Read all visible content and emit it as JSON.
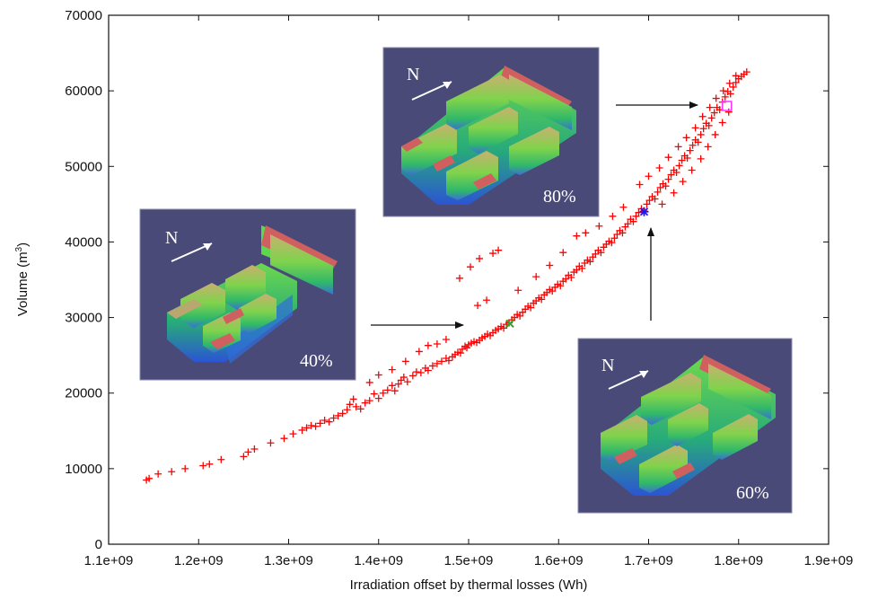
{
  "chart_data": {
    "type": "scatter",
    "title": "",
    "xlabel": "Irradiation offset by thermal losses (Wh)",
    "ylabel_main": "Volume (m",
    "ylabel_sup": "3",
    "ylabel_close": ")",
    "xlim": [
      1100000000.0,
      1900000000.0
    ],
    "ylim": [
      0,
      70000
    ],
    "x_tick_values": [
      1100000000.0,
      1200000000.0,
      1300000000.0,
      1400000000.0,
      1500000000.0,
      1600000000.0,
      1700000000.0,
      1800000000.0,
      1900000000.0
    ],
    "x_tick_labels": [
      "1.1e+09",
      "1.2e+09",
      "1.3e+09",
      "1.4e+09",
      "1.5e+09",
      "1.6e+09",
      "1.7e+09",
      "1.8e+09",
      "1.9e+09"
    ],
    "y_tick_values": [
      0,
      10000,
      20000,
      30000,
      40000,
      50000,
      60000,
      70000
    ],
    "y_tick_labels": [
      "0",
      "10000",
      "20000",
      "30000",
      "40000",
      "50000",
      "60000",
      "70000"
    ],
    "grid": false,
    "colors": {
      "points": "#ff0000",
      "highlight_40": "#22aa22",
      "highlight_60": "#1a1aff",
      "highlight_80": "#ff33ff",
      "inset_bg": "#4a4a78"
    },
    "series": [
      {
        "marker": "+",
        "points": [
          [
            1142000000.0,
            8500
          ],
          [
            1145000000.0,
            8700
          ],
          [
            1155000000.0,
            9300
          ],
          [
            1170000000.0,
            9600
          ],
          [
            1185000000.0,
            10000
          ],
          [
            1205000000.0,
            10400
          ],
          [
            1212000000.0,
            10600
          ],
          [
            1225000000.0,
            11200
          ],
          [
            1250000000.0,
            11600
          ],
          [
            1255000000.0,
            12200
          ],
          [
            1262000000.0,
            12600
          ],
          [
            1280000000.0,
            13400
          ],
          [
            1295000000.0,
            14000
          ],
          [
            1305000000.0,
            14600
          ],
          [
            1315000000.0,
            15100
          ],
          [
            1320000000.0,
            15400
          ],
          [
            1325000000.0,
            15700
          ],
          [
            1330000000.0,
            15600
          ],
          [
            1335000000.0,
            16000
          ],
          [
            1340000000.0,
            16400
          ],
          [
            1345000000.0,
            16200
          ],
          [
            1350000000.0,
            16700
          ],
          [
            1355000000.0,
            17000
          ],
          [
            1360000000.0,
            17300
          ],
          [
            1365000000.0,
            17800
          ],
          [
            1368000000.0,
            18500
          ],
          [
            1372000000.0,
            19200
          ],
          [
            1375000000.0,
            18200
          ],
          [
            1380000000.0,
            17900
          ],
          [
            1385000000.0,
            18700
          ],
          [
            1390000000.0,
            19000
          ],
          [
            1395000000.0,
            19900
          ],
          [
            1400000000.0,
            19300
          ],
          [
            1405000000.0,
            20000
          ],
          [
            1410000000.0,
            20400
          ],
          [
            1415000000.0,
            21000
          ],
          [
            1418000000.0,
            20300
          ],
          [
            1422000000.0,
            21200
          ],
          [
            1425000000.0,
            21700
          ],
          [
            1428000000.0,
            22100
          ],
          [
            1432000000.0,
            21500
          ],
          [
            1438000000.0,
            22300
          ],
          [
            1442000000.0,
            22800
          ],
          [
            1447000000.0,
            22700
          ],
          [
            1452000000.0,
            23300
          ],
          [
            1455000000.0,
            23000
          ],
          [
            1460000000.0,
            23600
          ],
          [
            1465000000.0,
            23900
          ],
          [
            1470000000.0,
            24200
          ],
          [
            1475000000.0,
            24600
          ],
          [
            1478000000.0,
            24300
          ],
          [
            1482000000.0,
            24800
          ],
          [
            1485000000.0,
            25100
          ],
          [
            1488000000.0,
            25400
          ],
          [
            1491000000.0,
            25300
          ],
          [
            1493000000.0,
            25800
          ],
          [
            1496000000.0,
            26200
          ],
          [
            1498000000.0,
            26000
          ],
          [
            1500000000.0,
            26400
          ],
          [
            1503000000.0,
            26600
          ],
          [
            1506000000.0,
            26800
          ],
          [
            1509000000.0,
            26700
          ],
          [
            1512000000.0,
            27000
          ],
          [
            1515000000.0,
            27300
          ],
          [
            1518000000.0,
            27500
          ],
          [
            1521000000.0,
            27800
          ],
          [
            1524000000.0,
            27600
          ],
          [
            1527000000.0,
            28000
          ],
          [
            1530000000.0,
            28300
          ],
          [
            1533000000.0,
            28500
          ],
          [
            1536000000.0,
            28800
          ],
          [
            1539000000.0,
            28600
          ],
          [
            1542000000.0,
            29100
          ],
          [
            1545000000.0,
            29300
          ],
          [
            1548000000.0,
            29700
          ],
          [
            1551000000.0,
            30000
          ],
          [
            1554000000.0,
            30400
          ],
          [
            1557000000.0,
            30200
          ],
          [
            1560000000.0,
            30700
          ],
          [
            1563000000.0,
            31100
          ],
          [
            1566000000.0,
            31500
          ],
          [
            1569000000.0,
            31300
          ],
          [
            1572000000.0,
            31900
          ],
          [
            1575000000.0,
            32200
          ],
          [
            1578000000.0,
            32600
          ],
          [
            1581000000.0,
            32400
          ],
          [
            1584000000.0,
            33000
          ],
          [
            1587000000.0,
            33300
          ],
          [
            1590000000.0,
            33700
          ],
          [
            1593000000.0,
            33500
          ],
          [
            1596000000.0,
            34000
          ],
          [
            1599000000.0,
            34400
          ],
          [
            1602000000.0,
            34200
          ],
          [
            1605000000.0,
            34800
          ],
          [
            1608000000.0,
            35100
          ],
          [
            1611000000.0,
            35600
          ],
          [
            1614000000.0,
            35300
          ],
          [
            1617000000.0,
            36000
          ],
          [
            1620000000.0,
            36300
          ],
          [
            1623000000.0,
            36800
          ],
          [
            1626000000.0,
            36500
          ],
          [
            1629000000.0,
            37200
          ],
          [
            1632000000.0,
            37600
          ],
          [
            1635000000.0,
            37400
          ],
          [
            1638000000.0,
            38000
          ],
          [
            1641000000.0,
            38400
          ],
          [
            1644000000.0,
            38900
          ],
          [
            1647000000.0,
            38600
          ],
          [
            1650000000.0,
            39300
          ],
          [
            1653000000.0,
            39700
          ],
          [
            1656000000.0,
            40100
          ],
          [
            1659000000.0,
            39900
          ],
          [
            1662000000.0,
            40500
          ],
          [
            1665000000.0,
            41000
          ],
          [
            1668000000.0,
            41500
          ],
          [
            1671000000.0,
            41200
          ],
          [
            1674000000.0,
            42000
          ],
          [
            1677000000.0,
            42400
          ],
          [
            1680000000.0,
            43000
          ],
          [
            1683000000.0,
            42700
          ],
          [
            1686000000.0,
            43400
          ],
          [
            1689000000.0,
            43900
          ],
          [
            1692000000.0,
            44400
          ],
          [
            1695000000.0,
            44100
          ],
          [
            1698000000.0,
            45000
          ],
          [
            1701000000.0,
            45500
          ],
          [
            1704000000.0,
            46000
          ],
          [
            1707000000.0,
            45700
          ],
          [
            1710000000.0,
            46600
          ],
          [
            1713000000.0,
            47200
          ],
          [
            1716000000.0,
            47700
          ],
          [
            1719000000.0,
            47400
          ],
          [
            1722000000.0,
            48300
          ],
          [
            1725000000.0,
            48900
          ],
          [
            1728000000.0,
            49500
          ],
          [
            1731000000.0,
            49200
          ],
          [
            1734000000.0,
            50100
          ],
          [
            1737000000.0,
            50800
          ],
          [
            1740000000.0,
            51400
          ],
          [
            1743000000.0,
            51100
          ],
          [
            1746000000.0,
            52100
          ],
          [
            1749000000.0,
            52800
          ],
          [
            1752000000.0,
            53500
          ],
          [
            1755000000.0,
            53200
          ],
          [
            1758000000.0,
            54200
          ],
          [
            1761000000.0,
            55000
          ],
          [
            1764000000.0,
            55700
          ],
          [
            1767000000.0,
            55400
          ],
          [
            1770000000.0,
            56400
          ],
          [
            1773000000.0,
            57100
          ],
          [
            1776000000.0,
            57800
          ],
          [
            1779000000.0,
            57500
          ],
          [
            1782000000.0,
            58500
          ],
          [
            1785000000.0,
            59200
          ],
          [
            1788000000.0,
            59900
          ],
          [
            1791000000.0,
            59600
          ],
          [
            1794000000.0,
            60500
          ],
          [
            1797000000.0,
            61100
          ],
          [
            1800000000.0,
            61600
          ],
          [
            1803000000.0,
            61900
          ],
          [
            1806000000.0,
            62200
          ],
          [
            1809000000.0,
            62500
          ],
          [
            1690000000.0,
            47600
          ],
          [
            1700000000.0,
            48700
          ],
          [
            1712000000.0,
            49800
          ],
          [
            1722000000.0,
            51200
          ],
          [
            1733000000.0,
            52600
          ],
          [
            1742000000.0,
            53800
          ],
          [
            1752000000.0,
            55100
          ],
          [
            1760000000.0,
            56600
          ],
          [
            1768000000.0,
            57800
          ],
          [
            1775000000.0,
            59000
          ],
          [
            1783000000.0,
            60000
          ],
          [
            1790000000.0,
            61000
          ],
          [
            1797000000.0,
            62000
          ],
          [
            1715000000.0,
            45000
          ],
          [
            1728000000.0,
            46500
          ],
          [
            1738000000.0,
            48000
          ],
          [
            1748000000.0,
            49500
          ],
          [
            1758000000.0,
            51000
          ],
          [
            1766000000.0,
            52600
          ],
          [
            1774000000.0,
            54200
          ],
          [
            1782000000.0,
            55800
          ],
          [
            1789000000.0,
            57200
          ],
          [
            1620000000.0,
            40800
          ],
          [
            1630000000.0,
            41200
          ],
          [
            1645000000.0,
            42100
          ],
          [
            1660000000.0,
            43400
          ],
          [
            1672000000.0,
            44600
          ],
          [
            1490000000.0,
            35200
          ],
          [
            1502000000.0,
            36700
          ],
          [
            1512000000.0,
            37800
          ],
          [
            1527000000.0,
            38500
          ],
          [
            1533000000.0,
            38900
          ],
          [
            1520000000.0,
            32300
          ],
          [
            1510000000.0,
            31600
          ],
          [
            1555000000.0,
            33600
          ],
          [
            1575000000.0,
            35400
          ],
          [
            1590000000.0,
            36900
          ],
          [
            1605000000.0,
            38600
          ],
          [
            1475000000.0,
            27100
          ],
          [
            1465000000.0,
            26500
          ],
          [
            1455000000.0,
            26300
          ],
          [
            1445000000.0,
            25500
          ],
          [
            1430000000.0,
            24200
          ],
          [
            1415000000.0,
            23100
          ],
          [
            1400000000.0,
            22400
          ],
          [
            1390000000.0,
            21400
          ]
        ]
      }
    ],
    "highlighted": [
      {
        "label": "40%",
        "marker": "x",
        "x": 1546000000.0,
        "y": 29200
      },
      {
        "label": "60%",
        "marker": "*",
        "x": 1695000000.0,
        "y": 44000
      },
      {
        "label": "80%",
        "marker": "square",
        "x": 1787000000.0,
        "y": 58000
      }
    ],
    "insets": [
      {
        "north_label": "N",
        "percent_label": "40%"
      },
      {
        "north_label": "N",
        "percent_label": "60%"
      },
      {
        "north_label": "N",
        "percent_label": "80%"
      }
    ]
  }
}
